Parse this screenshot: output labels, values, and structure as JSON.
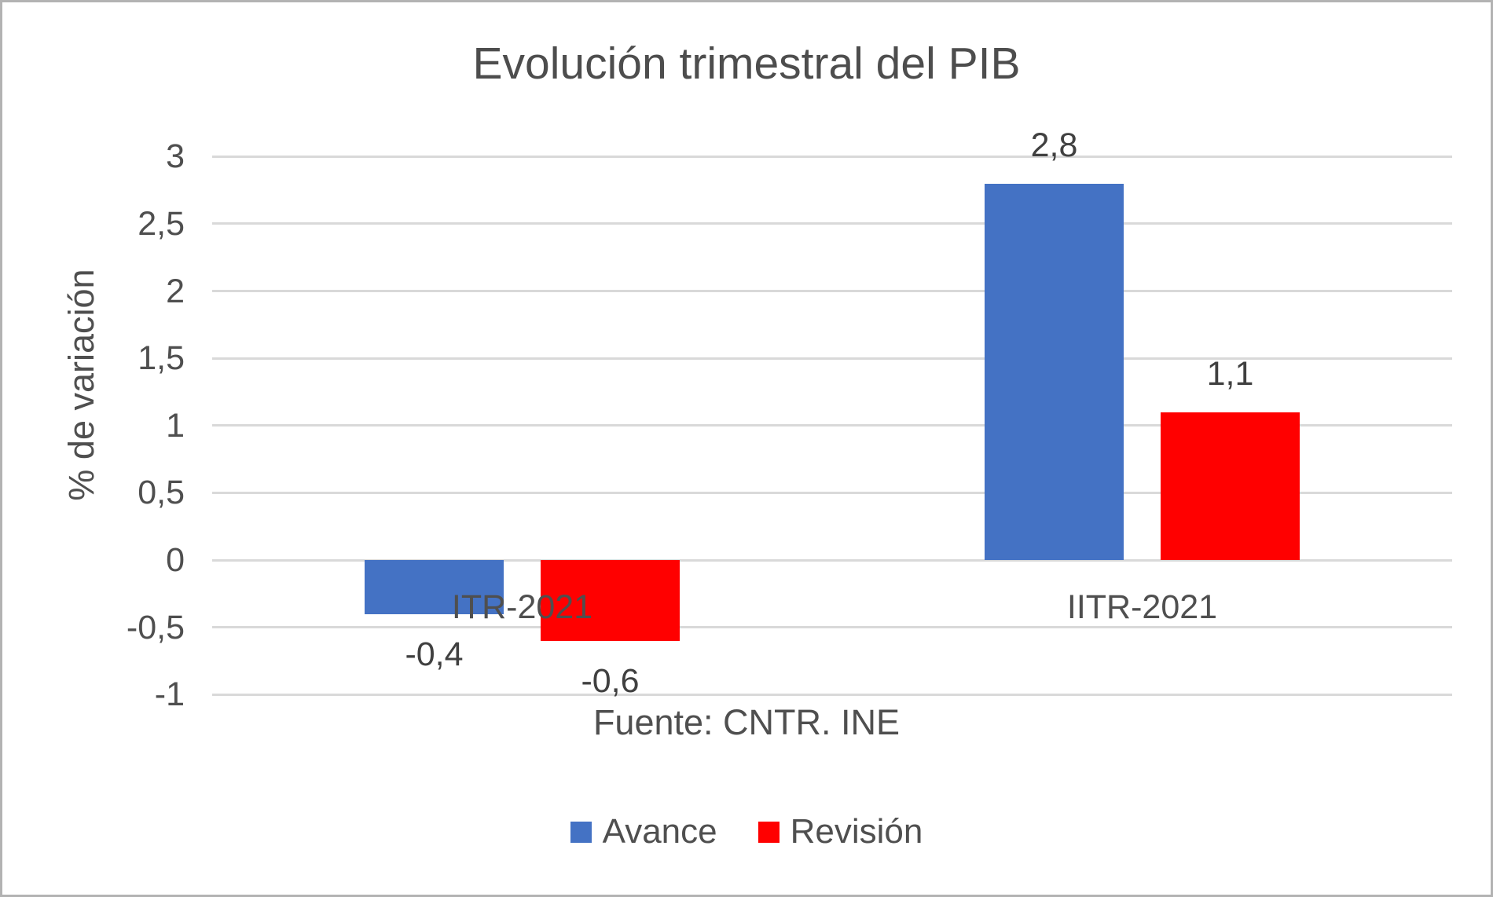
{
  "chart_data": {
    "type": "bar",
    "title": "Evolución trimestral del PIB",
    "xlabel": "Fuente: CNTR. INE",
    "ylabel": "% de variación",
    "categories": [
      "ITR-2021",
      "IITR-2021"
    ],
    "series": [
      {
        "name": "Avance",
        "color": "#4472c4",
        "values": [
          -0.4,
          2.8
        ],
        "labels": [
          "-0,4",
          "2,8"
        ]
      },
      {
        "name": "Revisión",
        "color": "#ff0000",
        "values": [
          -0.6,
          1.1
        ],
        "labels": [
          "-0,6",
          "1,1"
        ]
      }
    ],
    "ylim": [
      -1,
      3
    ],
    "ytick_values": [
      3,
      2.5,
      2,
      1.5,
      1,
      0.5,
      0,
      -0.5,
      -1
    ],
    "ytick_labels": [
      "3",
      "2,5",
      "2",
      "1,5",
      "1",
      "0,5",
      "0",
      "-0,5",
      "-1"
    ],
    "grid": true,
    "legend_position": "bottom",
    "colors": {
      "gridline": "#d9d9d9",
      "text": "#4f4f4f",
      "data_label_text": "#404040",
      "frame": "#b3b3b3",
      "background": "#ffffff"
    }
  }
}
